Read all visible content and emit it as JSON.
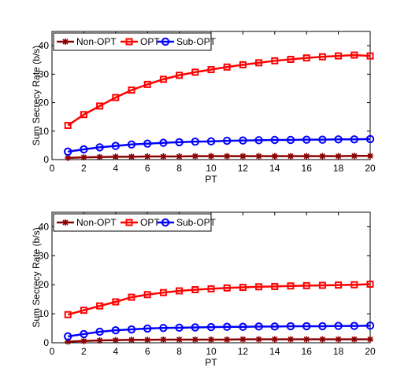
{
  "chart_data": [
    {
      "type": "line",
      "xlabel": "PT",
      "ylabel": "Sum Secrecy Rate (b/s)",
      "xlim": [
        0,
        20
      ],
      "ylim": [
        0,
        45
      ],
      "xticks": [
        0,
        2,
        4,
        6,
        8,
        10,
        12,
        14,
        16,
        18,
        20
      ],
      "yticks": [
        0,
        10,
        20,
        30,
        40
      ],
      "grid": false,
      "legend_position": "top-left, horizontal",
      "x": [
        1,
        2,
        3,
        4,
        5,
        6,
        7,
        8,
        9,
        10,
        11,
        12,
        13,
        14,
        15,
        16,
        17,
        18,
        19,
        20
      ],
      "series": [
        {
          "name": "Non-OPT",
          "color": "#8b0000",
          "marker": "star",
          "values": [
            0.6,
            0.8,
            0.9,
            1.0,
            1.0,
            1.1,
            1.1,
            1.1,
            1.2,
            1.2,
            1.2,
            1.2,
            1.2,
            1.2,
            1.2,
            1.2,
            1.2,
            1.2,
            1.3,
            1.3
          ]
        },
        {
          "name": "OPT",
          "color": "#ff0000",
          "marker": "square",
          "values": [
            12.0,
            15.8,
            18.8,
            21.8,
            24.4,
            26.4,
            28.2,
            29.6,
            30.7,
            31.6,
            32.5,
            33.3,
            34.0,
            34.7,
            35.2,
            35.7,
            36.1,
            36.4,
            36.7,
            36.4
          ]
        },
        {
          "name": "Sub-OPT",
          "color": "#0000ff",
          "marker": "circle",
          "values": [
            2.8,
            3.6,
            4.3,
            4.8,
            5.3,
            5.6,
            5.9,
            6.1,
            6.3,
            6.4,
            6.6,
            6.7,
            6.8,
            6.9,
            6.9,
            7.0,
            7.0,
            7.1,
            7.1,
            7.2
          ]
        }
      ]
    },
    {
      "type": "line",
      "xlabel": "PT",
      "ylabel": "Sum Secrecy Rate (b/s)",
      "xlim": [
        0,
        20
      ],
      "ylim": [
        0,
        45
      ],
      "xticks": [
        0,
        2,
        4,
        6,
        8,
        10,
        12,
        14,
        16,
        18,
        20
      ],
      "yticks": [
        0,
        10,
        20,
        30,
        40
      ],
      "grid": false,
      "legend_position": "top-left, horizontal",
      "x": [
        1,
        2,
        3,
        4,
        5,
        6,
        7,
        8,
        9,
        10,
        11,
        12,
        13,
        14,
        15,
        16,
        17,
        18,
        19,
        20
      ],
      "series": [
        {
          "name": "Non-OPT",
          "color": "#8b0000",
          "marker": "star",
          "values": [
            0.4,
            0.6,
            0.8,
            0.9,
            1.0,
            1.0,
            1.1,
            1.1,
            1.1,
            1.1,
            1.1,
            1.2,
            1.2,
            1.2,
            1.2,
            1.2,
            1.2,
            1.2,
            1.2,
            1.2
          ]
        },
        {
          "name": "OPT",
          "color": "#ff0000",
          "marker": "square",
          "values": [
            9.7,
            11.2,
            12.7,
            14.1,
            15.7,
            16.6,
            17.3,
            17.9,
            18.3,
            18.6,
            18.9,
            19.1,
            19.3,
            19.4,
            19.6,
            19.7,
            19.8,
            19.9,
            20.0,
            20.2
          ]
        },
        {
          "name": "Sub-OPT",
          "color": "#0000ff",
          "marker": "circle",
          "values": [
            2.2,
            3.0,
            3.8,
            4.3,
            4.6,
            4.9,
            5.1,
            5.2,
            5.3,
            5.4,
            5.5,
            5.5,
            5.6,
            5.6,
            5.7,
            5.7,
            5.7,
            5.8,
            5.8,
            5.9
          ]
        }
      ]
    }
  ]
}
